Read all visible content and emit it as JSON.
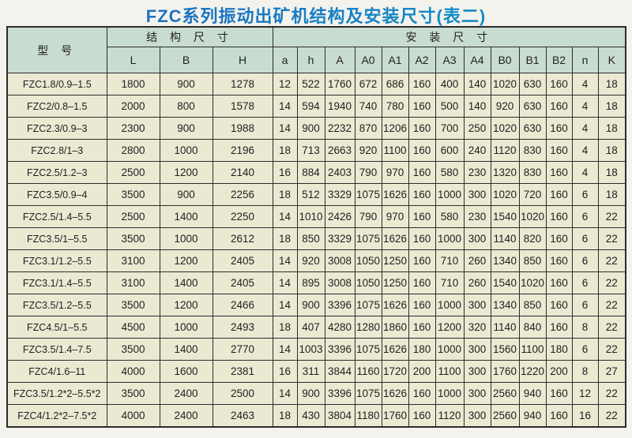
{
  "title": "FZC系列振动出矿机结构及安装尺寸(表二)",
  "colors": {
    "title_gradient_start": "#2166be",
    "title_gradient_end": "#0a9dc7",
    "header_bg": "#c9dcd2",
    "cell_bg": "#ece9d3",
    "border": "#2c2c2c",
    "page_bg": "#f3f2ec"
  },
  "table": {
    "model_header": "型  号",
    "group_structure": "结 构 尺 寸",
    "group_install": "安 装 尺 寸",
    "structure_cols": [
      "L",
      "B",
      "H"
    ],
    "install_cols": [
      "a",
      "h",
      "A",
      "A0",
      "A1",
      "A2",
      "A3",
      "A4",
      "B0",
      "B1",
      "B2",
      "n",
      "K"
    ],
    "rows": [
      {
        "model": "FZC1.8/0.9–1.5",
        "values": [
          1800,
          900,
          1278,
          12,
          522,
          1760,
          672,
          686,
          160,
          400,
          140,
          1020,
          630,
          160,
          4,
          18
        ]
      },
      {
        "model": "FZC2/0.8–1.5",
        "values": [
          2000,
          800,
          1578,
          14,
          594,
          1940,
          740,
          780,
          160,
          500,
          140,
          920,
          630,
          160,
          4,
          18
        ]
      },
      {
        "model": "FZC2.3/0.9–3",
        "values": [
          2300,
          900,
          1988,
          14,
          900,
          2232,
          870,
          1206,
          160,
          700,
          250,
          1020,
          630,
          160,
          4,
          18
        ]
      },
      {
        "model": "FZC2.8/1–3",
        "values": [
          2800,
          1000,
          2196,
          18,
          713,
          2663,
          920,
          1100,
          160,
          600,
          240,
          1120,
          830,
          160,
          4,
          18
        ]
      },
      {
        "model": "FZC2.5/1.2–3",
        "values": [
          2500,
          1200,
          2140,
          16,
          884,
          2403,
          790,
          970,
          160,
          580,
          230,
          1320,
          830,
          160,
          4,
          18
        ]
      },
      {
        "model": "FZC3.5/0.9–4",
        "values": [
          3500,
          900,
          2256,
          18,
          512,
          3329,
          1075,
          1626,
          160,
          1000,
          300,
          1020,
          720,
          160,
          6,
          18
        ]
      },
      {
        "model": "FZC2.5/1.4–5.5",
        "values": [
          2500,
          1400,
          2250,
          14,
          1010,
          2426,
          790,
          970,
          160,
          580,
          230,
          1540,
          1020,
          160,
          6,
          22
        ]
      },
      {
        "model": "FZC3.5/1–5.5",
        "values": [
          3500,
          1000,
          2612,
          18,
          850,
          3329,
          1075,
          1626,
          160,
          1000,
          300,
          1140,
          820,
          160,
          6,
          22
        ]
      },
      {
        "model": "FZC3.1/1.2–5.5",
        "values": [
          3100,
          1200,
          2405,
          14,
          920,
          3008,
          1050,
          1250,
          160,
          710,
          260,
          1340,
          850,
          160,
          6,
          22
        ]
      },
      {
        "model": "FZC3.1/1.4–5.5",
        "values": [
          3100,
          1400,
          2405,
          14,
          895,
          3008,
          1050,
          1250,
          160,
          710,
          260,
          1540,
          1020,
          160,
          6,
          22
        ]
      },
      {
        "model": "FZC3.5/1.2–5.5",
        "values": [
          3500,
          1200,
          2466,
          14,
          900,
          3396,
          1075,
          1626,
          160,
          1000,
          300,
          1340,
          850,
          160,
          6,
          22
        ]
      },
      {
        "model": "FZC4.5/1–5.5",
        "values": [
          4500,
          1000,
          2493,
          18,
          407,
          4280,
          1280,
          1860,
          160,
          1200,
          320,
          1140,
          840,
          160,
          8,
          22
        ]
      },
      {
        "model": "FZC3.5/1.4–7.5",
        "values": [
          3500,
          1400,
          2770,
          14,
          1003,
          3396,
          1075,
          1626,
          180,
          1000,
          300,
          1560,
          1100,
          180,
          6,
          22
        ]
      },
      {
        "model": "FZC4/1.6–11",
        "values": [
          4000,
          1600,
          2381,
          16,
          311,
          3844,
          1160,
          1720,
          200,
          1100,
          300,
          1760,
          1220,
          200,
          8,
          27
        ]
      },
      {
        "model": "FZC3.5/1.2*2–5.5*2",
        "values": [
          3500,
          2400,
          2500,
          14,
          900,
          3396,
          1075,
          1626,
          160,
          1000,
          300,
          2560,
          940,
          160,
          12,
          22
        ]
      },
      {
        "model": "FZC4/1.2*2–7.5*2",
        "values": [
          4000,
          2400,
          2463,
          18,
          430,
          3804,
          1180,
          1760,
          160,
          1120,
          300,
          2560,
          940,
          160,
          16,
          22
        ]
      }
    ]
  }
}
